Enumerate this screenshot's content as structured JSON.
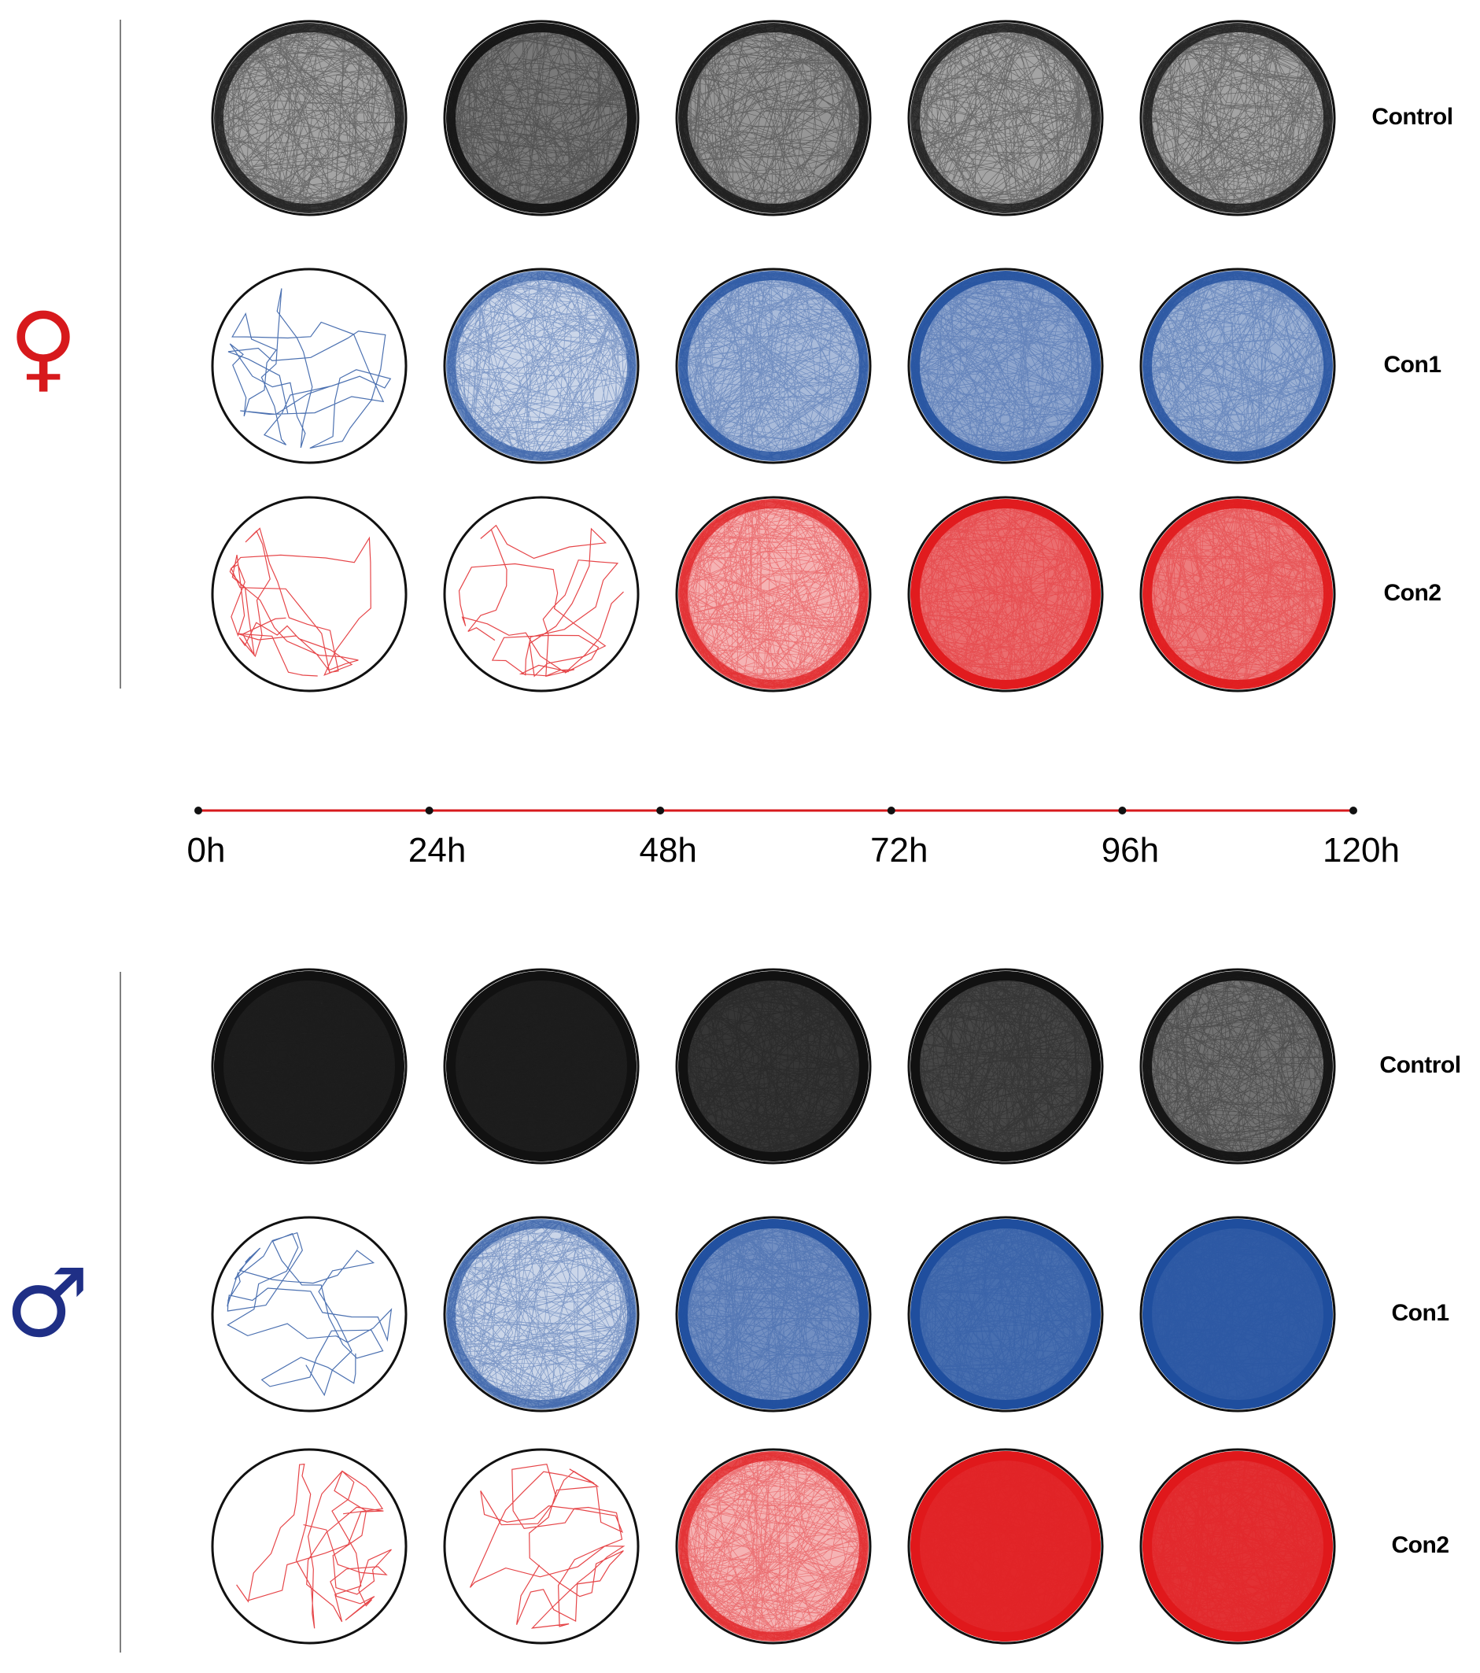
{
  "colors": {
    "control": "#111111",
    "con1": "#1f4e9e",
    "con2": "#e0181b",
    "timeline": "#d7191c",
    "female": "#d7191c",
    "male": "#1f2f86"
  },
  "icons": {
    "female": "female-sign-icon",
    "male": "male-sign-icon"
  },
  "sex_symbols": {
    "female": "♀",
    "male": "♂"
  },
  "timeline": {
    "ticks": [
      "0h",
      "24h",
      "48h",
      "72h",
      "96h",
      "120h"
    ]
  },
  "panels": [
    {
      "sex": "female",
      "groups": [
        {
          "name": "Control",
          "activity": [
            0.55,
            0.7,
            0.6,
            0.55,
            0.55
          ]
        },
        {
          "name": "Con1",
          "activity": [
            0.05,
            0.4,
            0.55,
            0.65,
            0.6
          ]
        },
        {
          "name": "Con2",
          "activity": [
            0.03,
            0.04,
            0.5,
            0.75,
            0.7
          ]
        }
      ]
    },
    {
      "sex": "male",
      "groups": [
        {
          "name": "Control",
          "activity": [
            1.0,
            0.97,
            0.9,
            0.85,
            0.72
          ]
        },
        {
          "name": "Con1",
          "activity": [
            0.05,
            0.4,
            0.75,
            0.88,
            0.95
          ]
        },
        {
          "name": "Con2",
          "activity": [
            0.02,
            0.04,
            0.5,
            0.96,
            0.93
          ]
        }
      ]
    }
  ]
}
